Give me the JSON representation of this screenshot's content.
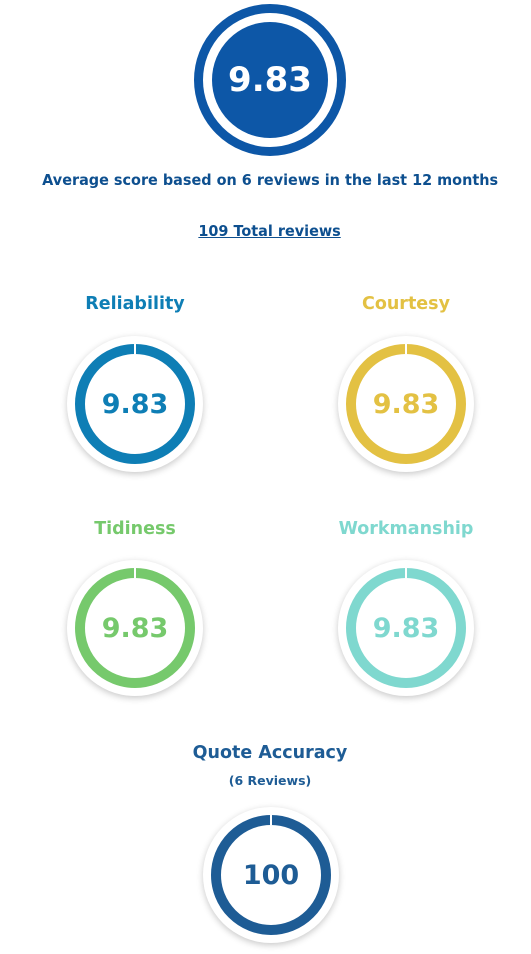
{
  "overall": {
    "score": "9.83",
    "average_text": "Average score based on 6 reviews in the last 12 months",
    "total_reviews_link": "109 Total reviews",
    "color": "#0d57a7"
  },
  "categories": [
    {
      "label": "Reliability",
      "score": "9.83",
      "color": "#0e7eb5"
    },
    {
      "label": "Courtesy",
      "score": "9.83",
      "color": "#e3c143"
    },
    {
      "label": "Tidiness",
      "score": "9.83",
      "color": "#76c96c"
    },
    {
      "label": "Workmanship",
      "score": "9.83",
      "color": "#7fd8cf"
    }
  ],
  "quote_accuracy": {
    "label": "Quote Accuracy",
    "reviews_text": "(6 Reviews)",
    "score": "100",
    "color": "#1e5c95"
  }
}
